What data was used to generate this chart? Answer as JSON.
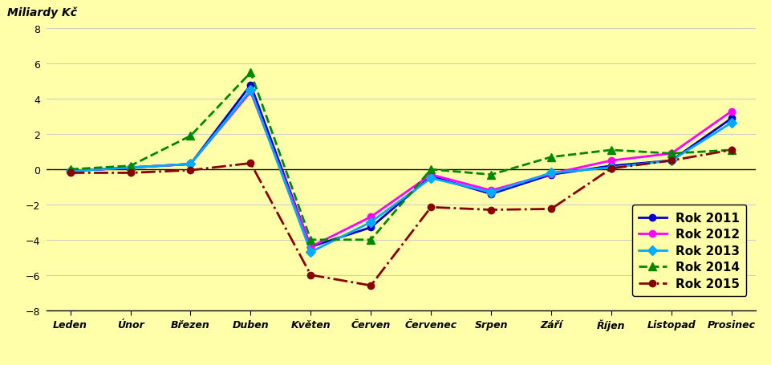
{
  "months": [
    "Leden",
    "Únor",
    "Březen",
    "Duben",
    "Květen",
    "Červen",
    "Červenec",
    "Srpen",
    "Září",
    "Říjen",
    "Listopad",
    "Prosinec"
  ],
  "series": {
    "Rok 2011": {
      "values": [
        -0.1,
        0.1,
        0.3,
        4.8,
        -4.4,
        -3.3,
        -0.4,
        -1.4,
        -0.3,
        0.2,
        0.5,
        2.9
      ],
      "color": "#0000CC",
      "marker": "o",
      "linestyle": "-",
      "linewidth": 2.0,
      "markersize": 6
    },
    "Rok 2012": {
      "values": [
        -0.1,
        0.1,
        0.3,
        4.4,
        -4.4,
        -2.7,
        -0.3,
        -1.2,
        -0.25,
        0.5,
        0.9,
        3.3
      ],
      "color": "#FF00FF",
      "marker": "o",
      "linestyle": "-",
      "linewidth": 2.0,
      "markersize": 6
    },
    "Rok 2013": {
      "values": [
        -0.1,
        0.1,
        0.3,
        4.5,
        -4.7,
        -3.0,
        -0.5,
        -1.3,
        -0.2,
        0.1,
        0.5,
        2.65
      ],
      "color": "#00AAFF",
      "marker": "D",
      "linestyle": "-",
      "linewidth": 2.0,
      "markersize": 6
    },
    "Rok 2014": {
      "values": [
        0.0,
        0.2,
        1.9,
        5.5,
        -4.0,
        -4.0,
        0.0,
        -0.3,
        0.7,
        1.1,
        0.9,
        1.1
      ],
      "color": "#008800",
      "marker": "^",
      "linestyle": "--",
      "linewidth": 2.0,
      "markersize": 7
    },
    "Rok 2015": {
      "values": [
        -0.2,
        -0.2,
        -0.05,
        0.35,
        -6.0,
        -6.6,
        -2.15,
        -2.3,
        -2.25,
        0.05,
        0.5,
        1.1
      ],
      "color": "#880000",
      "marker": "o",
      "linestyle": "-.",
      "linewidth": 2.0,
      "markersize": 6
    }
  },
  "ylabel": "Miliardy Kč",
  "ylim": [
    -8,
    8
  ],
  "yticks": [
    -8,
    -6,
    -4,
    -2,
    0,
    2,
    4,
    6,
    8
  ],
  "background_color": "#FFFFAA",
  "grid_color": "#CCCCCC",
  "legend_fontsize": 10,
  "ylabel_fontsize": 10
}
